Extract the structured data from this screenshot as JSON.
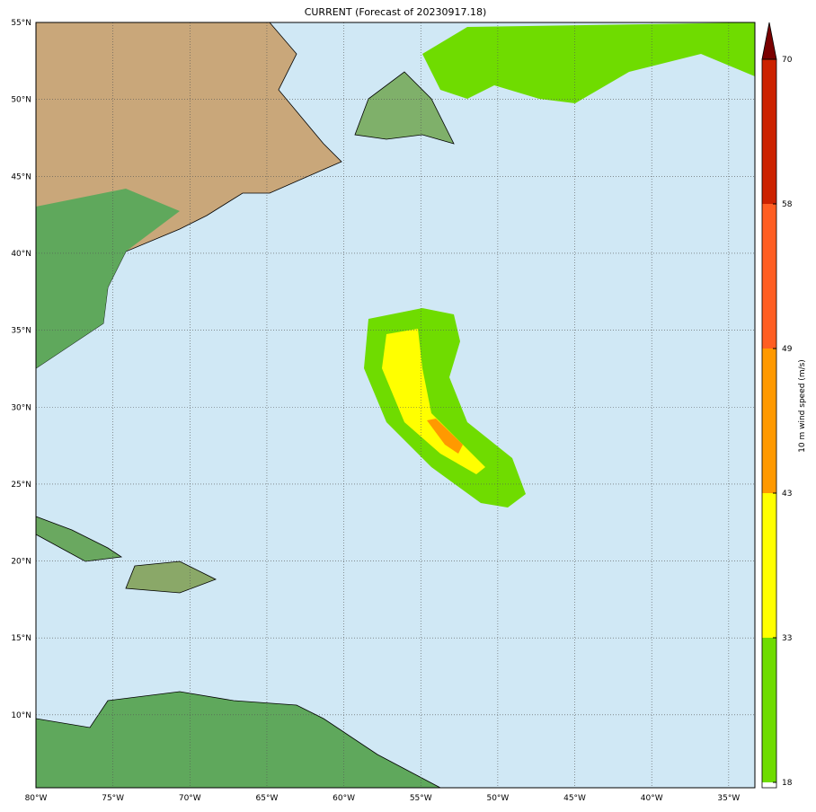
{
  "title": "CURRENT (Forecast of 20230917.18)",
  "map": {
    "lon_range": [
      -80,
      -33.3
    ],
    "lat_range": [
      5.3,
      55
    ],
    "lon_ticks": [
      {
        "v": -80,
        "label": "80°W"
      },
      {
        "v": -75,
        "label": "75°W"
      },
      {
        "v": -70,
        "label": "70°W"
      },
      {
        "v": -65,
        "label": "65°W"
      },
      {
        "v": -60,
        "label": "60°W"
      },
      {
        "v": -55,
        "label": "55°W"
      },
      {
        "v": -50,
        "label": "50°W"
      },
      {
        "v": -45,
        "label": "45°W"
      },
      {
        "v": -40,
        "label": "40°W"
      },
      {
        "v": -35,
        "label": "35°W"
      }
    ],
    "lat_ticks": [
      {
        "v": 55,
        "label": "55°N"
      },
      {
        "v": 50,
        "label": "50°N"
      },
      {
        "v": 45,
        "label": "45°N"
      },
      {
        "v": 40,
        "label": "40°N"
      },
      {
        "v": 35,
        "label": "35°N"
      },
      {
        "v": 30,
        "label": "30°N"
      },
      {
        "v": 25,
        "label": "25°N"
      },
      {
        "v": 20,
        "label": "20°N"
      },
      {
        "v": 15,
        "label": "15°N"
      },
      {
        "v": 10,
        "label": "10°N"
      }
    ],
    "ocean_color": "#d0e8f5"
  },
  "colorbar": {
    "label": "10 m wind speed (m/s)",
    "levels": [
      {
        "v": 18,
        "label": "18"
      },
      {
        "v": 33,
        "label": "33"
      },
      {
        "v": 43,
        "label": "43"
      },
      {
        "v": 49,
        "label": "49"
      },
      {
        "v": 58,
        "label": "58"
      },
      {
        "v": 70,
        "label": "70"
      }
    ],
    "colors": [
      "#6fdc00",
      "#ffff00",
      "#ff9900",
      "#ff5e22",
      "#cc2200"
    ],
    "extend_color": "#7a0000"
  }
}
